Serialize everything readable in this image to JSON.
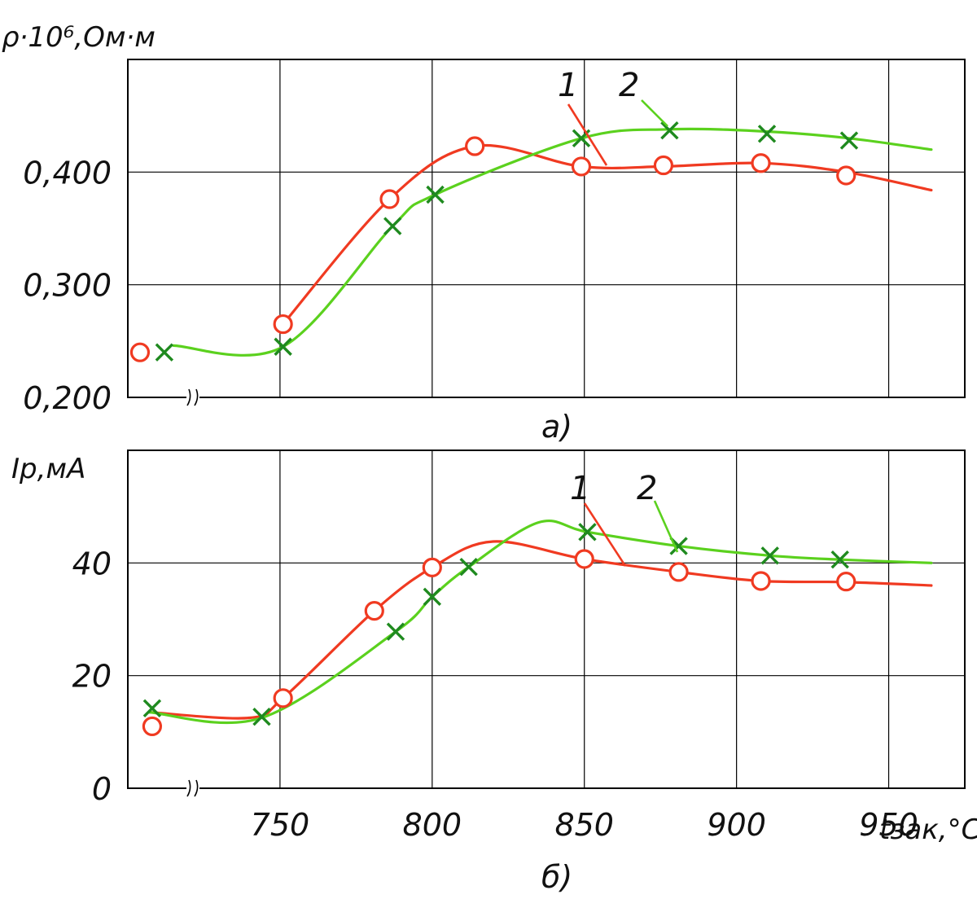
{
  "colors": {
    "series1": "#f03a21",
    "series2": "#5bd11e",
    "markers2": "#1f8a1f",
    "grid": "#000000"
  },
  "chart_data": [
    {
      "panel": "a)",
      "type": "line",
      "ylabel": "ρ·10⁶,Ом·м",
      "ylim": [
        0.2,
        0.5
      ],
      "yticks": [
        0.2,
        0.3,
        0.4
      ],
      "ytick_labels": [
        "0,200",
        "0,300",
        "0,400"
      ],
      "xlim": [
        700,
        975
      ],
      "xticks": [
        750,
        800,
        850,
        900,
        950
      ],
      "grid": true,
      "series": [
        {
          "name": "1",
          "marker": "circle",
          "points": [
            [
              704,
              0.24
            ],
            [
              751,
              0.265
            ],
            [
              786,
              0.376
            ],
            [
              814,
              0.423
            ],
            [
              849,
              0.405
            ],
            [
              876,
              0.406
            ],
            [
              908,
              0.408
            ],
            [
              936,
              0.397
            ]
          ],
          "curve": [
            [
              751,
              0.265
            ],
            [
              786,
              0.376
            ],
            [
              814,
              0.423
            ],
            [
              849,
              0.405
            ],
            [
              876,
              0.405
            ],
            [
              908,
              0.408
            ],
            [
              936,
              0.4
            ],
            [
              964,
              0.384
            ]
          ]
        },
        {
          "name": "2",
          "marker": "cross",
          "points": [
            [
              712,
              0.24
            ],
            [
              751,
              0.245
            ],
            [
              787,
              0.352
            ],
            [
              801,
              0.38
            ],
            [
              849,
              0.43
            ],
            [
              878,
              0.437
            ],
            [
              910,
              0.434
            ],
            [
              937,
              0.428
            ]
          ],
          "curve": [
            [
              715,
              0.246
            ],
            [
              751,
              0.245
            ],
            [
              787,
              0.352
            ],
            [
              801,
              0.38
            ],
            [
              849,
              0.43
            ],
            [
              878,
              0.438
            ],
            [
              910,
              0.436
            ],
            [
              937,
              0.43
            ],
            [
              964,
              0.42
            ]
          ]
        }
      ]
    },
    {
      "panel": "б)",
      "type": "line",
      "ylabel": "Iр,мА",
      "ylim": [
        0,
        60
      ],
      "yticks": [
        0,
        20,
        40
      ],
      "ytick_labels": [
        "0",
        "20",
        "40"
      ],
      "xlim": [
        700,
        975
      ],
      "xticks": [
        750,
        800,
        850,
        900,
        950
      ],
      "xtick_labels": [
        "750",
        "800",
        "850",
        "900",
        "950"
      ],
      "xlabel": "tзак,°С",
      "grid": true,
      "series": [
        {
          "name": "1",
          "marker": "circle",
          "points": [
            [
              708,
              11.0
            ],
            [
              751,
              16.0
            ],
            [
              781,
              31.5
            ],
            [
              800,
              39.2
            ],
            [
              850,
              40.7
            ],
            [
              881,
              38.4
            ],
            [
              908,
              36.8
            ],
            [
              936,
              36.7
            ]
          ],
          "curve": [
            [
              707,
              13.5
            ],
            [
              740,
              12.5
            ],
            [
              751,
              16.0
            ],
            [
              781,
              31.5
            ],
            [
              800,
              39.2
            ],
            [
              820,
              43.8
            ],
            [
              850,
              40.7
            ],
            [
              881,
              38.4
            ],
            [
              908,
              36.8
            ],
            [
              936,
              36.6
            ],
            [
              964,
              36.0
            ]
          ]
        },
        {
          "name": "2",
          "marker": "cross",
          "points": [
            [
              708,
              14.2
            ],
            [
              744,
              12.7
            ],
            [
              788,
              27.8
            ],
            [
              800,
              34.0
            ],
            [
              812,
              39.3
            ],
            [
              851,
              45.5
            ],
            [
              881,
              43.0
            ],
            [
              911,
              41.3
            ],
            [
              934,
              40.6
            ]
          ],
          "curve": [
            [
              707,
              13.5
            ],
            [
              744,
              12.5
            ],
            [
              788,
              27.8
            ],
            [
              800,
              34.0
            ],
            [
              812,
              39.3
            ],
            [
              835,
              47.2
            ],
            [
              851,
              45.5
            ],
            [
              881,
              43.0
            ],
            [
              911,
              41.3
            ],
            [
              934,
              40.6
            ],
            [
              964,
              40.0
            ]
          ]
        }
      ]
    }
  ]
}
